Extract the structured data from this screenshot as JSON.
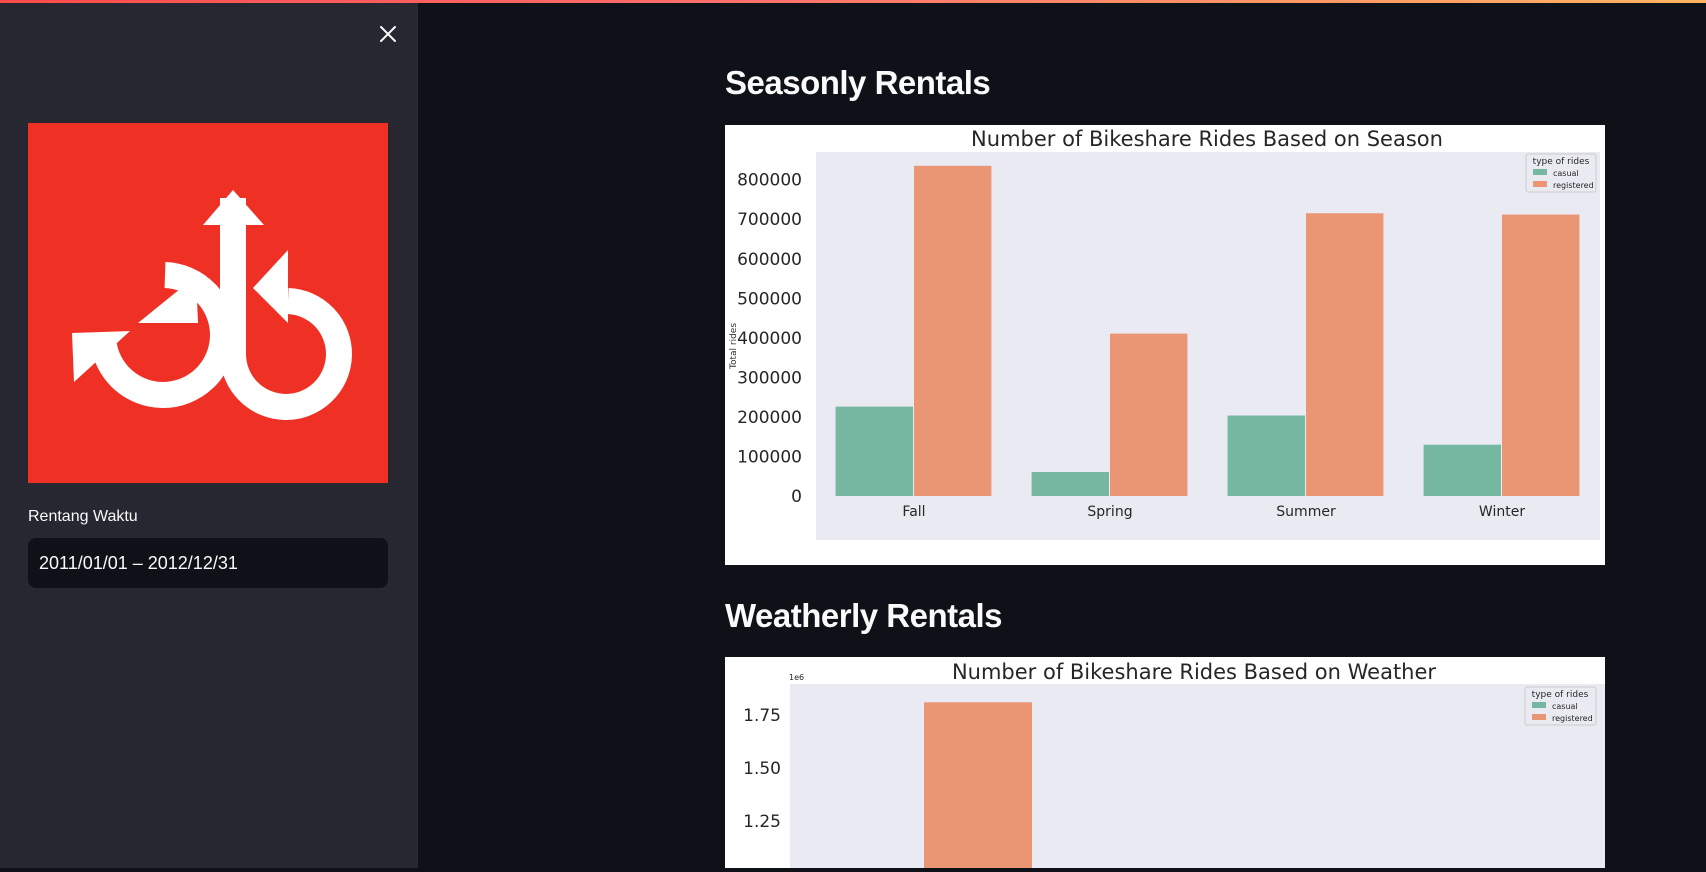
{
  "sidebar": {
    "close_icon": "close-icon",
    "logo_icon": "bikeshare-logo-icon",
    "date_label": "Rentang Waktu",
    "date_value": "2011/01/01 – 2012/12/31"
  },
  "colors": {
    "casual": "#76b7a1",
    "registered": "#ea9674",
    "plot_bg": "#eaeaf2",
    "logo_bg": "#ef3125"
  },
  "sections": [
    {
      "title": "Seasonly Rentals"
    },
    {
      "title": "Weatherly Rentals"
    }
  ],
  "chart_data": [
    {
      "type": "bar",
      "title": "Number of Bikeshare Rides Based on Season",
      "xlabel": "",
      "ylabel": "Total rides",
      "categories": [
        "Fall",
        "Spring",
        "Summer",
        "Winter"
      ],
      "series": [
        {
          "name": "casual",
          "values": [
            226091,
            60622,
            203522,
            129782
          ]
        },
        {
          "name": "registered",
          "values": [
            835038,
            410726,
            715067,
            711831
          ]
        }
      ],
      "ylim": [
        0,
        870000
      ],
      "yticks": [
        0,
        100000,
        200000,
        300000,
        400000,
        500000,
        600000,
        700000,
        800000
      ],
      "ytick_labels": [
        "0",
        "100000",
        "200000",
        "300000",
        "400000",
        "500000",
        "600000",
        "700000",
        "800000"
      ],
      "legend": {
        "title": "type of rides",
        "placement": "top-right",
        "entries": [
          "casual",
          "registered"
        ]
      },
      "grid": false
    },
    {
      "type": "bar",
      "title": "Number of Bikeshare Rides Based on Weather",
      "xlabel": "",
      "ylabel": "",
      "offset_text": "1e6",
      "visible_yticks": [
        1.25,
        1.5,
        1.75
      ],
      "ytick_labels": [
        "1.25",
        "1.50",
        "1.75"
      ],
      "series": [
        {
          "name": "registered",
          "visible_values": [
            1.81
          ]
        }
      ],
      "legend": {
        "title": "type of rides",
        "placement": "top-right",
        "entries": [
          "casual",
          "registered"
        ]
      },
      "grid": false
    }
  ]
}
